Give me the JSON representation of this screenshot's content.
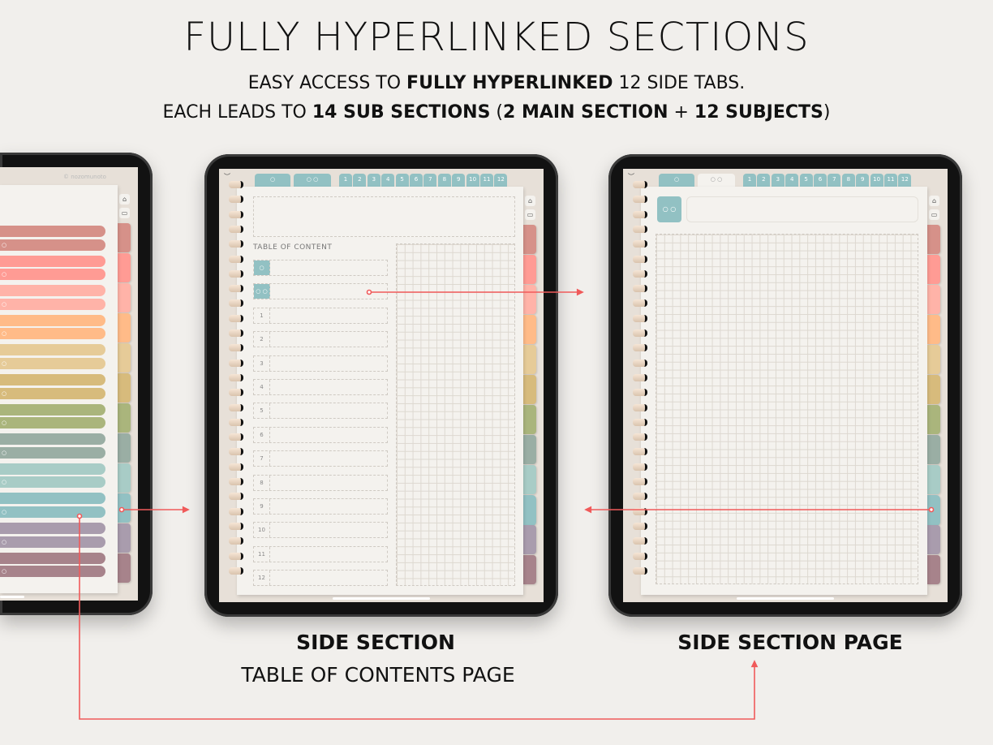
{
  "header": {
    "title": "FULLY HYPERLINKED SECTIONS",
    "line1": {
      "a": "EASY ACCESS TO ",
      "b": "FULLY HYPERLINKED",
      "c": " 12 SIDE TABS."
    },
    "line2": {
      "a": "EACH LEADS TO ",
      "b": "14 SUB SECTIONS",
      "c": " (",
      "d": "2 MAIN SECTION",
      "e": " + ",
      "f": "12 SUBJECTS",
      "g": ")"
    }
  },
  "planner": {
    "watermark": "© nozomunoto",
    "main_tabs": [
      "○",
      "○ ○"
    ],
    "number_tabs": [
      "1",
      "2",
      "3",
      "4",
      "5",
      "6",
      "7",
      "8",
      "9",
      "10",
      "11",
      "12"
    ],
    "side_tab_colors": [
      "#d69189",
      "#ff9b94",
      "#ffb3a8",
      "#ffbb88",
      "#e6cb98",
      "#d7bb7c",
      "#aab57c",
      "#9aaea4",
      "#a8ccc6",
      "#92c1c3",
      "#a99cad",
      "#a7838b"
    ],
    "active_side_tab": 10,
    "accent": "#92c1c3",
    "home_icon": "home-icon",
    "calendar_icon": "calendar-icon",
    "bar_marker": "○"
  },
  "toc": {
    "title": "TABLE OF CONTENT",
    "rows": [
      "○",
      "○ ○",
      "1",
      "2",
      "3",
      "4",
      "5",
      "6",
      "7",
      "8",
      "9",
      "10",
      "11",
      "12"
    ]
  },
  "section_page": {
    "icon_label": "○ ○",
    "active_top_tab": 2
  },
  "captions": {
    "middle_bold": "SIDE SECTION",
    "middle_sub": "TABLE OF CONTENTS PAGE",
    "right_bold": "SIDE SECTION PAGE"
  },
  "arrow_color": "#f05a5a"
}
